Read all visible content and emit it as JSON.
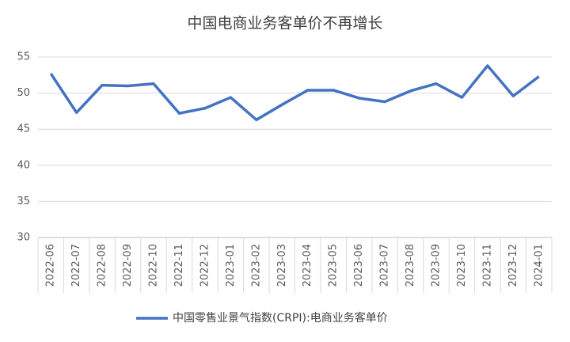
{
  "chart_data": {
    "type": "line",
    "title": "中国电商业务客单价不再增长",
    "categories": [
      "2022-06",
      "2022-07",
      "2022-08",
      "2022-09",
      "2022-10",
      "2022-11",
      "2022-12",
      "2023-01",
      "2023-02",
      "2023-03",
      "2023-04",
      "2023-05",
      "2023-06",
      "2023-07",
      "2023-08",
      "2023-09",
      "2023-10",
      "2023-11",
      "2023-12",
      "2024-01"
    ],
    "series": [
      {
        "name": "中国零售业景气指数(CRPI):电商业务客单价",
        "color": "#4472c4",
        "values": [
          52.7,
          47.3,
          51.1,
          51.0,
          51.3,
          47.2,
          47.9,
          49.4,
          46.3,
          48.4,
          50.4,
          50.4,
          49.3,
          48.8,
          50.3,
          51.3,
          49.4,
          53.8,
          49.6,
          52.3
        ]
      }
    ],
    "ylim": [
      30,
      55
    ],
    "yticks": [
      30,
      35,
      40,
      45,
      50,
      55
    ],
    "grid": true,
    "legend": "bottom"
  }
}
